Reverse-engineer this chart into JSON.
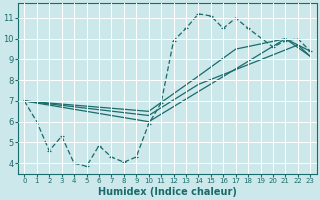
{
  "xlabel": "Humidex (Indice chaleur)",
  "bg_color": "#cce8eb",
  "line_color": "#1a6b6b",
  "grid_color": "#ffffff",
  "xmin": -0.5,
  "xmax": 23.5,
  "ymin": 3.5,
  "ymax": 11.7,
  "yticks": [
    4,
    5,
    6,
    7,
    8,
    9,
    10,
    11
  ],
  "xticks": [
    0,
    1,
    2,
    3,
    4,
    5,
    6,
    7,
    8,
    9,
    10,
    11,
    12,
    13,
    14,
    15,
    16,
    17,
    18,
    19,
    20,
    21,
    22,
    23
  ],
  "zigzag_x": [
    0,
    1,
    2,
    3,
    4,
    5,
    6,
    7,
    8,
    9,
    10,
    11,
    12,
    13,
    14,
    15,
    16,
    17,
    18,
    20,
    21,
    22,
    23
  ],
  "zigzag_y": [
    7.0,
    6.0,
    4.6,
    5.3,
    4.0,
    3.85,
    4.85,
    4.3,
    4.05,
    4.3,
    5.9,
    6.9,
    9.9,
    10.5,
    11.2,
    11.1,
    10.5,
    11.0,
    10.5,
    9.6,
    9.9,
    10.0,
    9.4
  ],
  "trend1_x": [
    0,
    10,
    21,
    23
  ],
  "trend1_y": [
    7.0,
    6.0,
    10.0,
    9.4
  ],
  "trend2_x": [
    0,
    10,
    14,
    22,
    23
  ],
  "trend2_y": [
    7.0,
    6.3,
    7.8,
    9.7,
    9.15
  ],
  "trend3_x": [
    0,
    10,
    14,
    17,
    21,
    23
  ],
  "trend3_y": [
    7.0,
    6.5,
    8.2,
    9.5,
    10.0,
    9.15
  ]
}
